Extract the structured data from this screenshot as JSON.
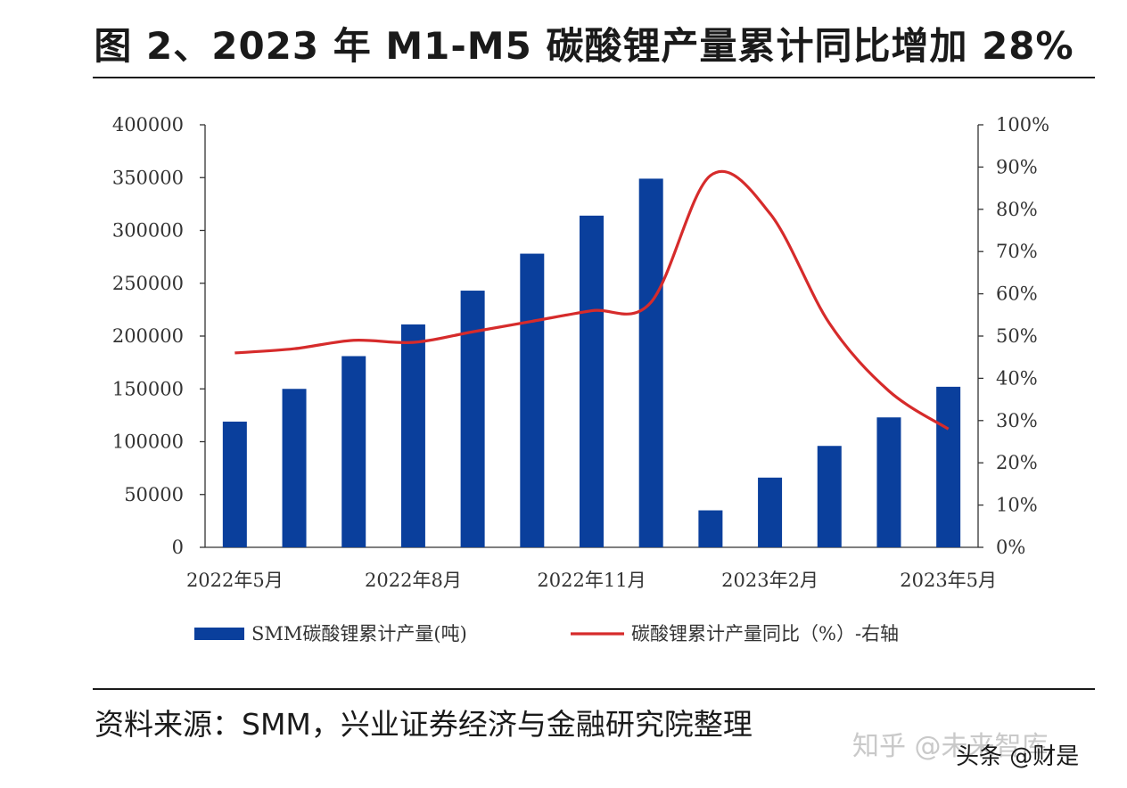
{
  "title": "图 2、2023 年 M1-M5 碳酸锂产量累计同比增加 28%",
  "source": "资料来源：SMM，兴业证券经济与金融研究院整理",
  "watermark": "知乎 @未来智库",
  "watermark2": "头条 @财是",
  "colors": {
    "bar": "#0a3f9c",
    "line": "#d62b2b",
    "axis": "#333333"
  },
  "chart_data": {
    "type": "bar",
    "title": "图 2、2023 年 M1-M5 碳酸锂产量累计同比增加 28%",
    "categories": [
      "2022年5月",
      "2022年6月",
      "2022年7月",
      "2022年8月",
      "2022年9月",
      "2022年10月",
      "2022年11月",
      "2022年12月",
      "2023年1月",
      "2023年2月",
      "2023年3月",
      "2023年4月",
      "2023年5月"
    ],
    "x_tick_labels": [
      "2022年5月",
      "2022年8月",
      "2022年11月",
      "2023年2月",
      "2023年5月"
    ],
    "x_tick_indices": [
      0,
      3,
      6,
      9,
      12
    ],
    "ylim": [
      0,
      400000
    ],
    "y_ticks": [
      0,
      50000,
      100000,
      150000,
      200000,
      250000,
      300000,
      350000,
      400000
    ],
    "y2lim": [
      0,
      100
    ],
    "y2_ticks": [
      "0%",
      "10%",
      "20%",
      "30%",
      "40%",
      "50%",
      "60%",
      "70%",
      "80%",
      "90%",
      "100%"
    ],
    "series": [
      {
        "name": "SMM碳酸锂累计产量(吨)",
        "type": "bar",
        "axis": "left",
        "values": [
          119000,
          150000,
          181000,
          211000,
          243000,
          278000,
          314000,
          349000,
          35000,
          66000,
          96000,
          123000,
          152000
        ]
      },
      {
        "name": "碳酸锂累计产量同比（%）-右轴",
        "type": "line",
        "axis": "right",
        "values": [
          46,
          47,
          49,
          48.5,
          51,
          53.5,
          56,
          58,
          88,
          79,
          53,
          37,
          28
        ]
      }
    ],
    "legend": "bottom"
  }
}
